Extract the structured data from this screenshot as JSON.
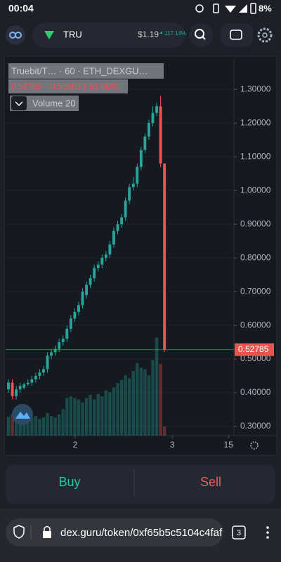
{
  "status_bar": {
    "time": "00:04",
    "battery": "8%"
  },
  "header": {
    "token": "TRU",
    "price": "$1.19",
    "change": "117.14%"
  },
  "chart_data": {
    "type": "candlestick",
    "legend_title": "Truebit/T… · 60 · ETH_DEXGU…",
    "legend_ohlc": "0.52785",
    "legend_change": "-0.55065 (-51.06%)",
    "volume_label": "Volume 20",
    "up_color": "#26a69a",
    "down_color": "#ef5350",
    "open": [
      0.41,
      0.43,
      0.39,
      0.41,
      0.415,
      0.425,
      0.43,
      0.44,
      0.45,
      0.46,
      0.47,
      0.51,
      0.52,
      0.53,
      0.55,
      0.56,
      0.59,
      0.62,
      0.64,
      0.66,
      0.69,
      0.72,
      0.74,
      0.77,
      0.78,
      0.8,
      0.81,
      0.84,
      0.88,
      0.9,
      0.92,
      0.97,
      1.01,
      1.02,
      1.07,
      1.12,
      1.16,
      1.2,
      1.23,
      1.25,
      1.08
    ],
    "high": [
      0.44,
      0.44,
      0.42,
      0.43,
      0.43,
      0.44,
      0.45,
      0.46,
      0.47,
      0.48,
      0.52,
      0.53,
      0.54,
      0.56,
      0.57,
      0.6,
      0.63,
      0.65,
      0.67,
      0.71,
      0.73,
      0.75,
      0.78,
      0.79,
      0.81,
      0.82,
      0.85,
      0.89,
      0.91,
      0.93,
      0.98,
      1.02,
      1.04,
      1.08,
      1.13,
      1.17,
      1.21,
      1.25,
      1.26,
      1.28,
      1.08
    ],
    "low": [
      0.4,
      0.38,
      0.38,
      0.4,
      0.41,
      0.42,
      0.42,
      0.43,
      0.44,
      0.45,
      0.46,
      0.5,
      0.51,
      0.52,
      0.54,
      0.55,
      0.58,
      0.61,
      0.63,
      0.65,
      0.68,
      0.71,
      0.73,
      0.76,
      0.77,
      0.79,
      0.8,
      0.83,
      0.87,
      0.89,
      0.91,
      0.96,
      1.0,
      1.01,
      1.06,
      1.11,
      1.15,
      1.19,
      1.22,
      1.07,
      0.52
    ],
    "close": [
      0.43,
      0.39,
      0.41,
      0.42,
      0.425,
      0.43,
      0.44,
      0.45,
      0.46,
      0.47,
      0.51,
      0.52,
      0.53,
      0.55,
      0.56,
      0.59,
      0.62,
      0.64,
      0.66,
      0.7,
      0.72,
      0.74,
      0.77,
      0.78,
      0.8,
      0.81,
      0.84,
      0.88,
      0.9,
      0.92,
      0.97,
      1.01,
      1.02,
      1.07,
      1.12,
      1.16,
      1.2,
      1.23,
      1.25,
      1.08,
      0.52785
    ],
    "volume": [
      25,
      28,
      22,
      24,
      20,
      22,
      24,
      26,
      22,
      24,
      30,
      26,
      24,
      28,
      35,
      50,
      52,
      50,
      48,
      44,
      50,
      54,
      48,
      55,
      52,
      60,
      58,
      64,
      70,
      74,
      80,
      76,
      86,
      96,
      90,
      88,
      80,
      100,
      130,
      95,
      12
    ],
    "volume_lim": [
      0,
      500
    ],
    "last_price": {
      "value": 0.52785,
      "label": "0.52785"
    },
    "xlim": [
      -0.72,
      57.8
    ],
    "xticks": [
      {
        "value": 17.1,
        "label": "2"
      },
      {
        "value": 42.0,
        "label": "3"
      },
      {
        "value": 56.4,
        "label": "15"
      }
    ],
    "ylim": [
      0.273,
      1.39
    ],
    "yticks": [
      {
        "value": 0.3,
        "label": "0.30000"
      },
      {
        "value": 0.4,
        "label": "0.40000"
      },
      {
        "value": 0.5,
        "label": "0.50000"
      },
      {
        "value": 0.6,
        "label": "0.60000"
      },
      {
        "value": 0.7,
        "label": "0.70000"
      },
      {
        "value": 0.8,
        "label": "0.80000"
      },
      {
        "value": 0.9,
        "label": "0.90000"
      },
      {
        "value": 1.0,
        "label": "1.00000"
      },
      {
        "value": 1.1,
        "label": "1.10000"
      },
      {
        "value": 1.2,
        "label": "1.20000"
      },
      {
        "value": 1.3,
        "label": "1.30000"
      }
    ]
  },
  "actions": {
    "buy": "Buy",
    "sell": "Sell"
  },
  "browser": {
    "url": "dex.guru/token/0xf65b5c5104c4faf",
    "tabs": "3"
  }
}
